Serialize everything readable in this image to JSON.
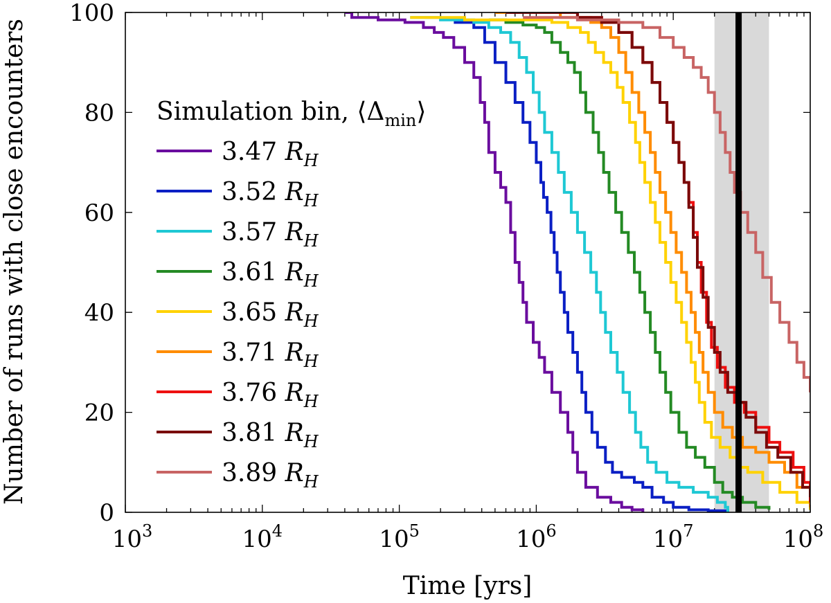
{
  "chart_data": {
    "type": "line",
    "xlabel": "Time [yrs]",
    "ylabel": "Number of runs with close encounters",
    "xscale": "log",
    "xlim": [
      1000,
      100000000
    ],
    "ylim": [
      0,
      100
    ],
    "x_ticks": [
      {
        "value": 1000,
        "base": "10",
        "exp": "3"
      },
      {
        "value": 10000,
        "base": "10",
        "exp": "4"
      },
      {
        "value": 100000,
        "base": "10",
        "exp": "5"
      },
      {
        "value": 1000000,
        "base": "10",
        "exp": "6"
      },
      {
        "value": 10000000,
        "base": "10",
        "exp": "7"
      },
      {
        "value": 100000000,
        "base": "10",
        "exp": "8"
      }
    ],
    "y_ticks": [
      0,
      20,
      40,
      60,
      80,
      100
    ],
    "legend": {
      "title_main": "Simulation bin, ⟨Δ",
      "title_sub": "min",
      "title_end": "⟩",
      "unit_main": "R",
      "unit_sub": "H",
      "position": "center-left"
    },
    "vertical_line": {
      "x": 30000000,
      "color": "#000000"
    },
    "shaded_band": {
      "x": [
        20000000,
        50000000
      ],
      "color": "#d9d9d9"
    },
    "series": [
      {
        "name": "3.47",
        "color": "#6a0d9e",
        "points": [
          [
            40000,
            100
          ],
          [
            45000,
            99
          ],
          [
            70000,
            98.5
          ],
          [
            110000,
            98
          ],
          [
            150000,
            97
          ],
          [
            180000,
            96
          ],
          [
            210000,
            95
          ],
          [
            250000,
            93
          ],
          [
            300000,
            90
          ],
          [
            350000,
            87
          ],
          [
            390000,
            82
          ],
          [
            420000,
            78
          ],
          [
            450000,
            72
          ],
          [
            500000,
            68
          ],
          [
            550000,
            65
          ],
          [
            600000,
            62
          ],
          [
            650000,
            56
          ],
          [
            700000,
            50
          ],
          [
            750000,
            46
          ],
          [
            800000,
            42
          ],
          [
            850000,
            38
          ],
          [
            950000,
            34
          ],
          [
            1050000,
            31
          ],
          [
            1150000,
            28
          ],
          [
            1300000,
            24
          ],
          [
            1500000,
            20
          ],
          [
            1700000,
            16
          ],
          [
            1850000,
            12
          ],
          [
            2000000,
            8
          ],
          [
            2300000,
            5
          ],
          [
            2800000,
            3
          ],
          [
            3500000,
            2
          ],
          [
            4200000,
            1
          ],
          [
            5000000,
            0.5
          ],
          [
            6000000,
            0
          ]
        ]
      },
      {
        "name": "3.52",
        "color": "#0a1fc4",
        "points": [
          [
            250000,
            98
          ],
          [
            350000,
            97
          ],
          [
            420000,
            94
          ],
          [
            500000,
            90
          ],
          [
            600000,
            86
          ],
          [
            700000,
            82
          ],
          [
            800000,
            78
          ],
          [
            900000,
            74
          ],
          [
            1000000,
            70
          ],
          [
            1080000,
            66
          ],
          [
            1130000,
            63
          ],
          [
            1200000,
            60
          ],
          [
            1280000,
            56
          ],
          [
            1350000,
            52
          ],
          [
            1420000,
            48
          ],
          [
            1500000,
            44
          ],
          [
            1600000,
            40
          ],
          [
            1700000,
            36
          ],
          [
            1850000,
            32
          ],
          [
            2000000,
            28
          ],
          [
            2150000,
            24
          ],
          [
            2300000,
            20
          ],
          [
            2550000,
            16
          ],
          [
            2800000,
            13
          ],
          [
            3200000,
            10
          ],
          [
            3600000,
            8
          ],
          [
            4200000,
            7
          ],
          [
            5200000,
            6
          ],
          [
            6000000,
            5
          ],
          [
            7000000,
            3
          ],
          [
            8500000,
            2
          ],
          [
            10000000,
            1
          ],
          [
            13000000,
            0.5
          ],
          [
            18000000,
            0.3
          ],
          [
            25000000,
            0
          ]
        ]
      },
      {
        "name": "3.57",
        "color": "#1ec8d4",
        "points": [
          [
            120000,
            99
          ],
          [
            200000,
            98.5
          ],
          [
            350000,
            98
          ],
          [
            450000,
            97
          ],
          [
            550000,
            96
          ],
          [
            650000,
            94
          ],
          [
            750000,
            91
          ],
          [
            850000,
            88
          ],
          [
            950000,
            84
          ],
          [
            1050000,
            80
          ],
          [
            1150000,
            76
          ],
          [
            1300000,
            72
          ],
          [
            1450000,
            68
          ],
          [
            1600000,
            64
          ],
          [
            1800000,
            60
          ],
          [
            2000000,
            56
          ],
          [
            2250000,
            52
          ],
          [
            2500000,
            48
          ],
          [
            2750000,
            44
          ],
          [
            2950000,
            40
          ],
          [
            3200000,
            36
          ],
          [
            3500000,
            32
          ],
          [
            3900000,
            28
          ],
          [
            4300000,
            24
          ],
          [
            4800000,
            20
          ],
          [
            5300000,
            16
          ],
          [
            5800000,
            13
          ],
          [
            6500000,
            10
          ],
          [
            7500000,
            8
          ],
          [
            9000000,
            6
          ],
          [
            11000000,
            5
          ],
          [
            14000000,
            4
          ],
          [
            18000000,
            3
          ],
          [
            21000000,
            2
          ],
          [
            24000000,
            1
          ],
          [
            25000000,
            0
          ]
        ]
      },
      {
        "name": "3.61",
        "color": "#248a24",
        "points": [
          [
            450000,
            98.5
          ],
          [
            600000,
            98
          ],
          [
            800000,
            97.5
          ],
          [
            1000000,
            97
          ],
          [
            1150000,
            96
          ],
          [
            1300000,
            94
          ],
          [
            1500000,
            92
          ],
          [
            1700000,
            90
          ],
          [
            1900000,
            88
          ],
          [
            2100000,
            84
          ],
          [
            2300000,
            80
          ],
          [
            2600000,
            76
          ],
          [
            2850000,
            72
          ],
          [
            3100000,
            68
          ],
          [
            3400000,
            64
          ],
          [
            3800000,
            60
          ],
          [
            4200000,
            56
          ],
          [
            4700000,
            52
          ],
          [
            5200000,
            48
          ],
          [
            5700000,
            44
          ],
          [
            6200000,
            40
          ],
          [
            6800000,
            36
          ],
          [
            7400000,
            32
          ],
          [
            8000000,
            28
          ],
          [
            8800000,
            24
          ],
          [
            9600000,
            20
          ],
          [
            11000000,
            16
          ],
          [
            12500000,
            13
          ],
          [
            14500000,
            11
          ],
          [
            17000000,
            9
          ],
          [
            20000000,
            6
          ],
          [
            23000000,
            4
          ],
          [
            27000000,
            3
          ],
          [
            32000000,
            2
          ],
          [
            40000000,
            1
          ],
          [
            50000000,
            0.5
          ]
        ]
      },
      {
        "name": "3.65",
        "color": "#ffd200",
        "points": [
          [
            120000,
            99
          ],
          [
            300000,
            98.5
          ],
          [
            700000,
            98.5
          ],
          [
            1300000,
            98
          ],
          [
            1700000,
            97
          ],
          [
            2100000,
            96
          ],
          [
            2400000,
            94
          ],
          [
            2700000,
            92
          ],
          [
            3100000,
            90
          ],
          [
            3500000,
            88
          ],
          [
            3900000,
            85
          ],
          [
            4300000,
            82
          ],
          [
            4800000,
            78
          ],
          [
            5300000,
            74
          ],
          [
            5700000,
            70
          ],
          [
            6200000,
            66
          ],
          [
            6800000,
            62
          ],
          [
            7400000,
            58
          ],
          [
            8000000,
            54
          ],
          [
            8800000,
            50
          ],
          [
            9600000,
            46
          ],
          [
            10500000,
            42
          ],
          [
            11500000,
            38
          ],
          [
            12500000,
            34
          ],
          [
            13500000,
            30
          ],
          [
            14500000,
            26
          ],
          [
            15500000,
            22
          ],
          [
            17000000,
            18
          ],
          [
            19000000,
            15
          ],
          [
            22000000,
            13
          ],
          [
            26000000,
            11
          ],
          [
            30000000,
            9
          ],
          [
            35000000,
            8
          ],
          [
            45000000,
            6
          ],
          [
            60000000,
            4
          ],
          [
            80000000,
            2
          ],
          [
            100000000,
            0.5
          ]
        ]
      },
      {
        "name": "3.71",
        "color": "#ff8c00",
        "points": [
          [
            500000,
            100
          ],
          [
            1500000,
            99
          ],
          [
            2500000,
            98
          ],
          [
            3000000,
            97
          ],
          [
            3500000,
            95
          ],
          [
            4000000,
            92
          ],
          [
            4500000,
            88
          ],
          [
            5000000,
            84
          ],
          [
            5600000,
            80
          ],
          [
            6200000,
            76
          ],
          [
            6800000,
            72
          ],
          [
            7400000,
            68
          ],
          [
            8000000,
            64
          ],
          [
            8800000,
            60
          ],
          [
            9600000,
            56
          ],
          [
            10500000,
            52
          ],
          [
            11500000,
            48
          ],
          [
            12500000,
            44
          ],
          [
            13500000,
            40
          ],
          [
            14500000,
            36
          ],
          [
            15500000,
            32
          ],
          [
            16500000,
            28
          ],
          [
            18000000,
            24
          ],
          [
            20000000,
            20
          ],
          [
            23000000,
            17
          ],
          [
            27000000,
            15
          ],
          [
            32000000,
            13
          ],
          [
            40000000,
            12
          ],
          [
            50000000,
            10
          ],
          [
            65000000,
            8
          ],
          [
            80000000,
            5
          ],
          [
            100000000,
            1
          ]
        ]
      },
      {
        "name": "3.76",
        "color": "#ee1010",
        "points": [
          [
            800000,
            100
          ],
          [
            2000000,
            99
          ],
          [
            3000000,
            98
          ],
          [
            4000000,
            96
          ],
          [
            5000000,
            93
          ],
          [
            6000000,
            90
          ],
          [
            7000000,
            86
          ],
          [
            8000000,
            82
          ],
          [
            9000000,
            78
          ],
          [
            10000000,
            74
          ],
          [
            11000000,
            70
          ],
          [
            12000000,
            66
          ],
          [
            13000000,
            62
          ],
          [
            14000000,
            56
          ],
          [
            15000000,
            50
          ],
          [
            16000000,
            44
          ],
          [
            17500000,
            38
          ],
          [
            19000000,
            33
          ],
          [
            21000000,
            29
          ],
          [
            24000000,
            25
          ],
          [
            28000000,
            22
          ],
          [
            33000000,
            20
          ],
          [
            40000000,
            17
          ],
          [
            50000000,
            14
          ],
          [
            60000000,
            12
          ],
          [
            75000000,
            9
          ],
          [
            90000000,
            6
          ],
          [
            100000000,
            2
          ]
        ]
      },
      {
        "name": "3.81",
        "color": "#7a0a0a",
        "points": [
          [
            600000,
            100
          ],
          [
            2000000,
            99
          ],
          [
            3000000,
            98
          ],
          [
            4000000,
            96
          ],
          [
            5000000,
            93
          ],
          [
            6000000,
            90
          ],
          [
            7000000,
            86
          ],
          [
            8000000,
            82
          ],
          [
            9000000,
            78
          ],
          [
            10000000,
            74
          ],
          [
            11000000,
            70
          ],
          [
            12000000,
            66
          ],
          [
            13000000,
            61
          ],
          [
            14000000,
            55
          ],
          [
            15000000,
            49
          ],
          [
            16500000,
            43
          ],
          [
            18000000,
            37
          ],
          [
            20000000,
            32
          ],
          [
            22000000,
            28
          ],
          [
            25000000,
            24
          ],
          [
            29000000,
            22
          ],
          [
            34000000,
            19
          ],
          [
            40000000,
            16
          ],
          [
            48000000,
            13
          ],
          [
            58000000,
            11
          ],
          [
            72000000,
            8
          ],
          [
            88000000,
            5
          ],
          [
            100000000,
            3
          ]
        ]
      },
      {
        "name": "3.89",
        "color": "#c86464",
        "points": [
          [
            800000,
            99
          ],
          [
            2000000,
            98.5
          ],
          [
            4000000,
            98
          ],
          [
            6000000,
            97
          ],
          [
            8000000,
            95
          ],
          [
            10000000,
            93
          ],
          [
            12000000,
            91
          ],
          [
            14000000,
            89
          ],
          [
            16000000,
            87
          ],
          [
            18000000,
            84
          ],
          [
            20000000,
            80
          ],
          [
            22000000,
            76
          ],
          [
            24000000,
            72
          ],
          [
            26000000,
            68
          ],
          [
            28000000,
            64
          ],
          [
            31000000,
            60
          ],
          [
            35000000,
            56
          ],
          [
            40000000,
            52
          ],
          [
            45000000,
            47
          ],
          [
            52000000,
            42
          ],
          [
            60000000,
            38
          ],
          [
            70000000,
            34
          ],
          [
            80000000,
            30
          ],
          [
            90000000,
            27
          ],
          [
            100000000,
            24
          ]
        ]
      }
    ]
  }
}
